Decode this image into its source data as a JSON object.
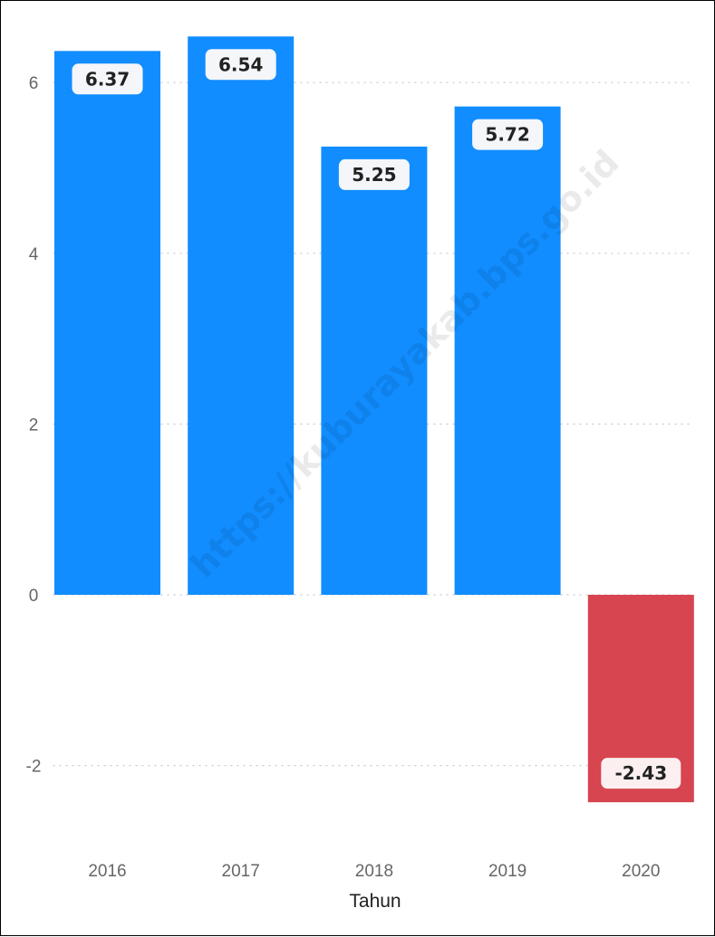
{
  "chart_data": {
    "type": "bar",
    "categories": [
      "2016",
      "2017",
      "2018",
      "2019",
      "2020"
    ],
    "values": [
      6.37,
      6.54,
      5.25,
      5.72,
      -2.43
    ],
    "data_labels": [
      "6.37",
      "6.54",
      "5.25",
      "5.72",
      "-2.43"
    ],
    "xlabel": "Tahun",
    "ylabel": "",
    "ylim": [
      -3,
      6.8
    ],
    "yticks": [
      6,
      4,
      2,
      0,
      -2
    ],
    "ytick_labels": [
      "6",
      "4",
      "2",
      "0",
      "-2"
    ],
    "grid": true,
    "colors": {
      "positive": "#118DFF",
      "negative": "#D64550"
    }
  },
  "watermark": "https://kuburayakab.bps.go.id"
}
